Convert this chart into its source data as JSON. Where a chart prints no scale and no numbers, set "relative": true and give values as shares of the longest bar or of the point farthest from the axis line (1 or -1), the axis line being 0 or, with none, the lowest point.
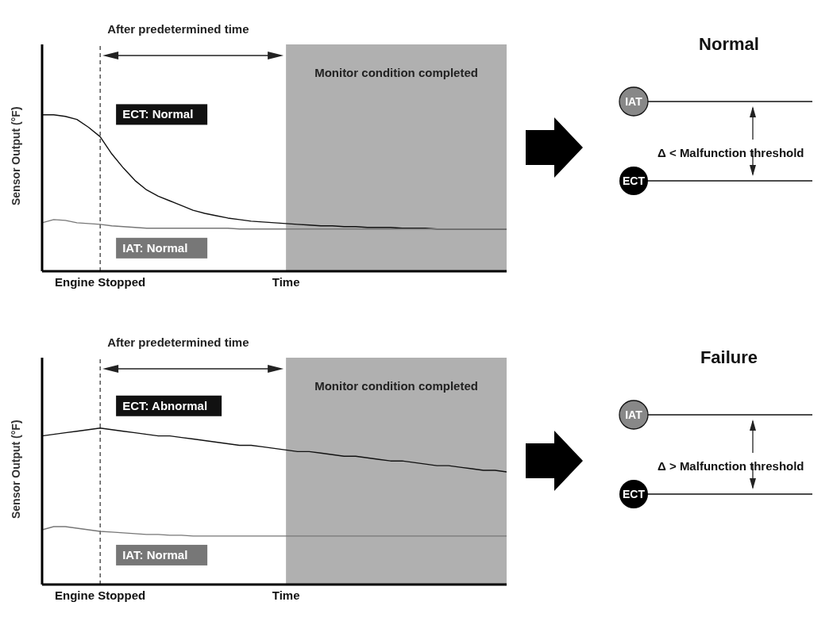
{
  "chart_data": [
    {
      "type": "line",
      "relative": true,
      "ylabel": "Sensor Output (°F)",
      "categories": [
        null,
        null,
        null,
        null,
        null,
        "Engine Stopped",
        null,
        null,
        null,
        null,
        null,
        null,
        null,
        null,
        null,
        null,
        null,
        null,
        null,
        null,
        null,
        "Time",
        null,
        null,
        null,
        null,
        null,
        null,
        null,
        null,
        null,
        null,
        null,
        null,
        null,
        null,
        null,
        null,
        null,
        null,
        null
      ],
      "series": [
        {
          "name": "ECT: Normal",
          "color": "#111111",
          "values": [
            1,
            1,
            0.99,
            0.97,
            0.92,
            0.86,
            0.75,
            0.66,
            0.58,
            0.52,
            0.48,
            0.45,
            0.42,
            0.39,
            0.37,
            0.355,
            0.34,
            0.33,
            0.32,
            0.315,
            0.31,
            0.305,
            0.3,
            0.295,
            0.29,
            0.29,
            0.285,
            0.285,
            0.28,
            0.28,
            0.28,
            0.275,
            0.275,
            0.275,
            0.27,
            0.27,
            0.27,
            0.27,
            0.27,
            0.27,
            0.27
          ]
        },
        {
          "name": "IAT: Normal",
          "color": "#777777",
          "values": [
            0.31,
            0.33,
            0.325,
            0.31,
            0.305,
            0.3,
            0.29,
            0.285,
            0.28,
            0.275,
            0.275,
            0.275,
            0.275,
            0.275,
            0.275,
            0.275,
            0.275,
            0.27,
            0.27,
            0.27,
            0.27,
            0.27,
            0.27,
            0.27,
            0.27,
            0.27,
            0.27,
            0.27,
            0.27,
            0.27,
            0.27,
            0.27,
            0.27,
            0.27,
            0.27,
            0.27,
            0.27,
            0.27,
            0.27,
            0.27,
            0.27
          ]
        }
      ],
      "ref_lines": [
        {
          "axis": "x",
          "value": "Engine Stopped",
          "line_style": "dashed"
        }
      ],
      "annotations": [
        "After predetermined time",
        "Monitor condition completed"
      ]
    },
    {
      "type": "other",
      "title": "Normal",
      "annotations": [
        "IAT",
        "ECT",
        "Δ < Malfunction threshold"
      ]
    },
    {
      "type": "line",
      "relative": true,
      "ylabel": "Sensor Output (°F)",
      "categories": [
        null,
        null,
        null,
        null,
        null,
        "Engine Stopped",
        null,
        null,
        null,
        null,
        null,
        null,
        null,
        null,
        null,
        null,
        null,
        null,
        null,
        null,
        null,
        "Time",
        null,
        null,
        null,
        null,
        null,
        null,
        null,
        null,
        null,
        null,
        null,
        null,
        null,
        null,
        null,
        null,
        null,
        null,
        null
      ],
      "series": [
        {
          "name": "ECT: Abnormal",
          "color": "#111111",
          "values": [
            0.95,
            0.96,
            0.97,
            0.98,
            0.99,
            1,
            0.99,
            0.98,
            0.97,
            0.96,
            0.95,
            0.95,
            0.94,
            0.93,
            0.92,
            0.91,
            0.9,
            0.89,
            0.89,
            0.88,
            0.87,
            0.86,
            0.85,
            0.85,
            0.84,
            0.83,
            0.82,
            0.82,
            0.81,
            0.8,
            0.79,
            0.79,
            0.78,
            0.77,
            0.76,
            0.76,
            0.75,
            0.74,
            0.73,
            0.73,
            0.72
          ]
        },
        {
          "name": "IAT: Normal",
          "color": "#777777",
          "values": [
            0.35,
            0.37,
            0.37,
            0.36,
            0.35,
            0.34,
            0.335,
            0.33,
            0.325,
            0.32,
            0.32,
            0.315,
            0.315,
            0.31,
            0.31,
            0.31,
            0.31,
            0.31,
            0.31,
            0.31,
            0.31,
            0.31,
            0.31,
            0.31,
            0.31,
            0.31,
            0.31,
            0.31,
            0.31,
            0.31,
            0.31,
            0.31,
            0.31,
            0.31,
            0.31,
            0.31,
            0.31,
            0.31,
            0.31,
            0.31,
            0.31
          ]
        }
      ],
      "ref_lines": [
        {
          "axis": "x",
          "value": "Engine Stopped",
          "line_style": "dashed"
        }
      ],
      "annotations": [
        "After predetermined time",
        "Monitor condition completed"
      ]
    },
    {
      "type": "other",
      "title": "Failure",
      "annotations": [
        "IAT",
        "ECT",
        "Δ > Malfunction threshold"
      ]
    }
  ]
}
